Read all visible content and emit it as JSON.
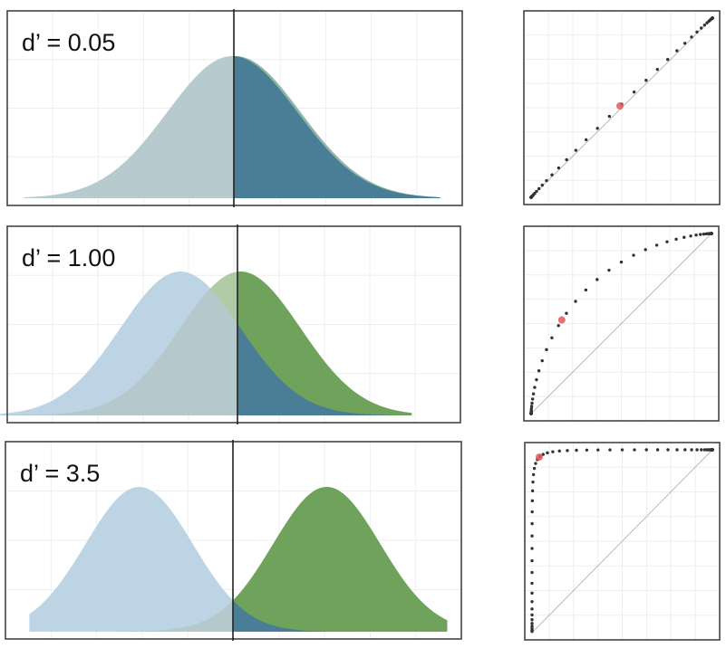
{
  "chart_data": [
    {
      "type": "area",
      "panel_label": "d’ = 0.05",
      "d_prime": 0.05,
      "criterion": 0.025,
      "noise_distribution": {
        "mean": 0,
        "sd": 1
      },
      "signal_distribution": {
        "mean": 0.05,
        "sd": 1
      },
      "xlim": [
        -3.25,
        3.25
      ],
      "grid": true,
      "colors": {
        "noise": "#b7cbcf",
        "signal": "#8eb5a5",
        "overlap_right": "#4a7e96",
        "overlap_left": "#b7cbcf"
      }
    },
    {
      "type": "area",
      "panel_label": "d’ = 1.00",
      "d_prime": 1.0,
      "criterion": 0.95,
      "noise_distribution": {
        "mean": 0,
        "sd": 1
      },
      "signal_distribution": {
        "mean": 1.0,
        "sd": 1
      },
      "xlim": [
        -3.1,
        3.9
      ],
      "grid": true,
      "colors": {
        "noise": "#bcd4e4",
        "signal": "#6fa35c",
        "overlap_right": "#4a7e96",
        "overlap_left": "#b5c9cc"
      }
    },
    {
      "type": "area",
      "panel_label": "d’ = 3.5",
      "d_prime": 3.5,
      "criterion": 1.75,
      "noise_distribution": {
        "mean": 0,
        "sd": 1
      },
      "signal_distribution": {
        "mean": 3.5,
        "sd": 1
      },
      "xlim": [
        -2.1,
        5.8
      ],
      "grid": true,
      "colors": {
        "noise": "#bcd4e4",
        "signal": "#6fa35c",
        "overlap_right": "#4a7e96",
        "overlap_left": "#b5c9cc"
      }
    },
    {
      "type": "line",
      "curve": "ROC",
      "d_prime": 0.05,
      "xlim": [
        0,
        1
      ],
      "ylim": [
        0,
        1
      ],
      "operating_point": {
        "false_alarm_rate": 0.49,
        "hit_rate": 0.51
      },
      "chance_line": true,
      "grid": true,
      "colors": {
        "curve": "#333333",
        "point": "#e05a5a",
        "chance": "#bbbbbb"
      }
    },
    {
      "type": "line",
      "curve": "ROC",
      "d_prime": 1.0,
      "xlim": [
        0,
        1
      ],
      "ylim": [
        0,
        1
      ],
      "operating_point": {
        "false_alarm_rate": 0.17,
        "hit_rate": 0.52
      },
      "chance_line": true,
      "grid": true,
      "colors": {
        "curve": "#333333",
        "point": "#e05a5a",
        "chance": "#bbbbbb"
      }
    },
    {
      "type": "line",
      "curve": "ROC",
      "d_prime": 3.5,
      "xlim": [
        0,
        1
      ],
      "ylim": [
        0,
        1
      ],
      "operating_point": {
        "false_alarm_rate": 0.04,
        "hit_rate": 0.96
      },
      "chance_line": true,
      "grid": true,
      "colors": {
        "curve": "#333333",
        "point": "#e05a5a",
        "chance": "#bbbbbb"
      }
    }
  ]
}
